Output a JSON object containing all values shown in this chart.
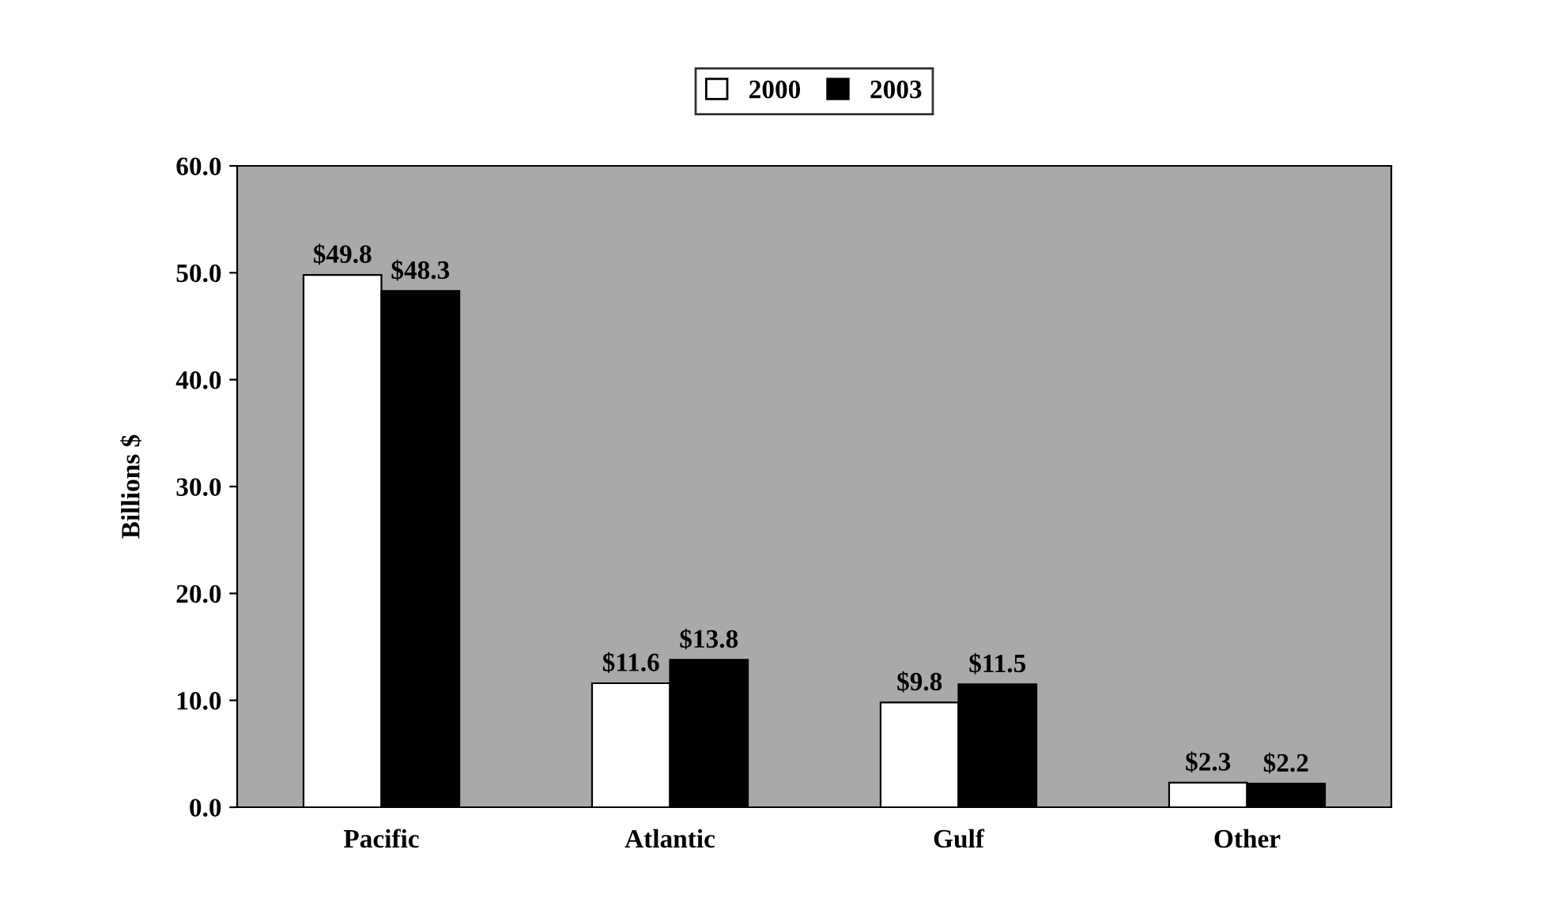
{
  "chart_data": {
    "type": "bar",
    "ylabel": "Billions $",
    "categories": [
      "Pacific",
      "Atlantic",
      "Gulf",
      "Other"
    ],
    "series": [
      {
        "name": "2000",
        "color": "#ffffff",
        "values": [
          49.8,
          11.6,
          9.8,
          2.3
        ],
        "value_labels": [
          "$49.8",
          "$11.6",
          "$9.8",
          "$2.3"
        ]
      },
      {
        "name": "2003",
        "color": "#000000",
        "values": [
          48.3,
          13.8,
          11.5,
          2.2
        ],
        "value_labels": [
          "$48.3",
          "$13.8",
          "$11.5",
          "$2.2"
        ]
      }
    ],
    "ylim": [
      0,
      60
    ],
    "yticks": [
      {
        "value": 0,
        "label": "0.0"
      },
      {
        "value": 10,
        "label": "10.0"
      },
      {
        "value": 20,
        "label": "20.0"
      },
      {
        "value": 30,
        "label": "30.0"
      },
      {
        "value": 40,
        "label": "40.0"
      },
      {
        "value": 50,
        "label": "50.0"
      },
      {
        "value": 60,
        "label": "60.0"
      }
    ],
    "grid": false,
    "legend": "top"
  }
}
